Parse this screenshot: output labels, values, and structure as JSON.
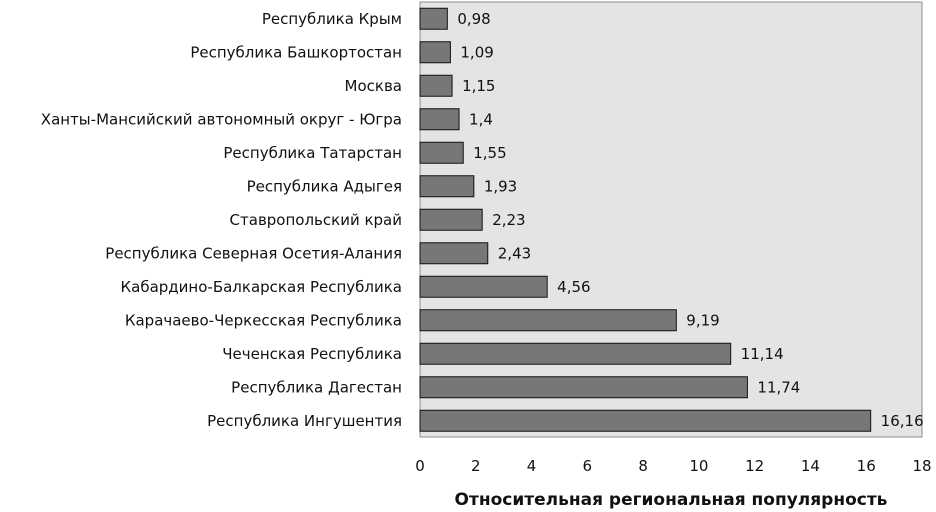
{
  "chart_data": {
    "type": "bar",
    "orientation": "horizontal",
    "categories": [
      "Республика Крым",
      "Республика Башкортостан",
      "Москва",
      "Ханты-Мансийский автономный округ - Югра",
      "Республика Татарстан",
      "Республика Адыгея",
      "Ставропольский край",
      "Республика Северная Осетия-Алания",
      "Кабардино-Балкарская Республика",
      "Карачаево-Черкесская Республика",
      "Чеченская Республика",
      "Республика Дагестан",
      "Республика Ингушентия"
    ],
    "values": [
      0.98,
      1.09,
      1.15,
      1.4,
      1.55,
      1.93,
      2.23,
      2.43,
      4.56,
      9.19,
      11.14,
      11.74,
      16.16
    ],
    "value_labels": [
      "0,98",
      "1,09",
      "1,15",
      "1,4",
      "1,55",
      "1,93",
      "2,23",
      "2,43",
      "4,56",
      "9,19",
      "11,14",
      "11,74",
      "16,16"
    ],
    "xticks": [
      "0",
      "2",
      "4",
      "6",
      "8",
      "10",
      "12",
      "14",
      "16",
      "18"
    ],
    "xlim": [
      0,
      18
    ],
    "xlabel": "Относительная региональная популярность",
    "ylabel": "",
    "title": "",
    "grid": false,
    "colors": {
      "bar": "#777777",
      "bar_edge": "#111111",
      "plot_bg": "#e4e4e4",
      "plot_border": "#8c8c8c"
    }
  }
}
